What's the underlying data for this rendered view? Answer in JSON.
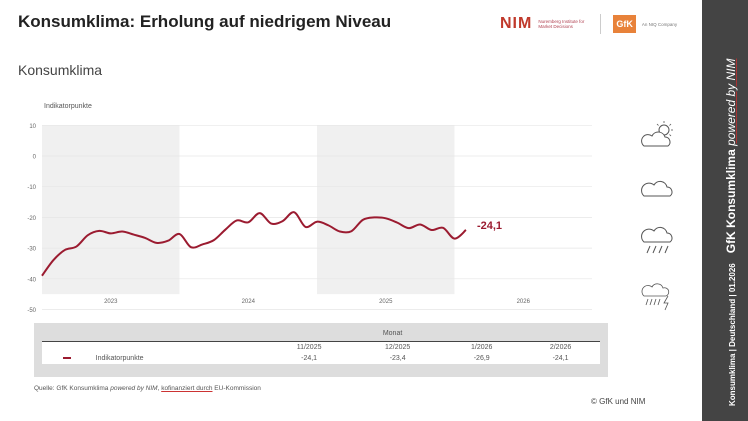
{
  "header": {
    "title": "Konsumklima: Erholung auf niedrigem Niveau",
    "subtitle": "Konsumklima",
    "nim_logo": "NIM",
    "nim_text": "Nuremberg Institute for Market Decisions",
    "gfk_logo": "GfK",
    "gfk_text": "An NIQ Company"
  },
  "side": {
    "left": "Konsumklima | Deutschland | 01.2026",
    "brand": "GfK Konsumklima",
    "powered": "powered by NIM"
  },
  "chart_data": {
    "type": "line",
    "ylabel": "Indikatorpunkte",
    "ylim": [
      -50,
      10
    ],
    "yticks": [
      10,
      0,
      -10,
      -20,
      -30,
      -40,
      -50
    ],
    "years": [
      "2023",
      "2024",
      "2025",
      "2026"
    ],
    "color": "#9b1b30",
    "end_label": "-24,1",
    "series": [
      {
        "name": "Indikatorpunkte",
        "start": "01/2023",
        "values": [
          -39.0,
          -33.9,
          -30.6,
          -29.5,
          -25.8,
          -24.4,
          -25.2,
          -24.6,
          -25.6,
          -26.7,
          -28.3,
          -27.6,
          -25.4,
          -29.7,
          -28.8,
          -27.4,
          -24.0,
          -21.0,
          -21.6,
          -18.6,
          -22.0,
          -21.2,
          -18.3,
          -23.1,
          -21.4,
          -22.6,
          -24.6,
          -24.5,
          -20.8,
          -20.0,
          -20.3,
          -21.7,
          -23.5,
          -22.3,
          -24.1,
          -23.4,
          -26.9,
          -24.1
        ]
      }
    ]
  },
  "table": {
    "group": "Monat",
    "months": [
      "11/2025",
      "12/2025",
      "1/2026",
      "2/2026"
    ],
    "row_label": "Indikatorpunkte",
    "values": [
      "-24,1",
      "-23,4",
      "-26,9",
      "-24,1"
    ]
  },
  "source": {
    "prefix": "Quelle: GfK Konsumklima ",
    "italic": "powered by NIM",
    "sep": ", ",
    "link": "kofinanziert durch",
    "rest": " EU-Kommission"
  },
  "copyright": "© GfK und NIM"
}
